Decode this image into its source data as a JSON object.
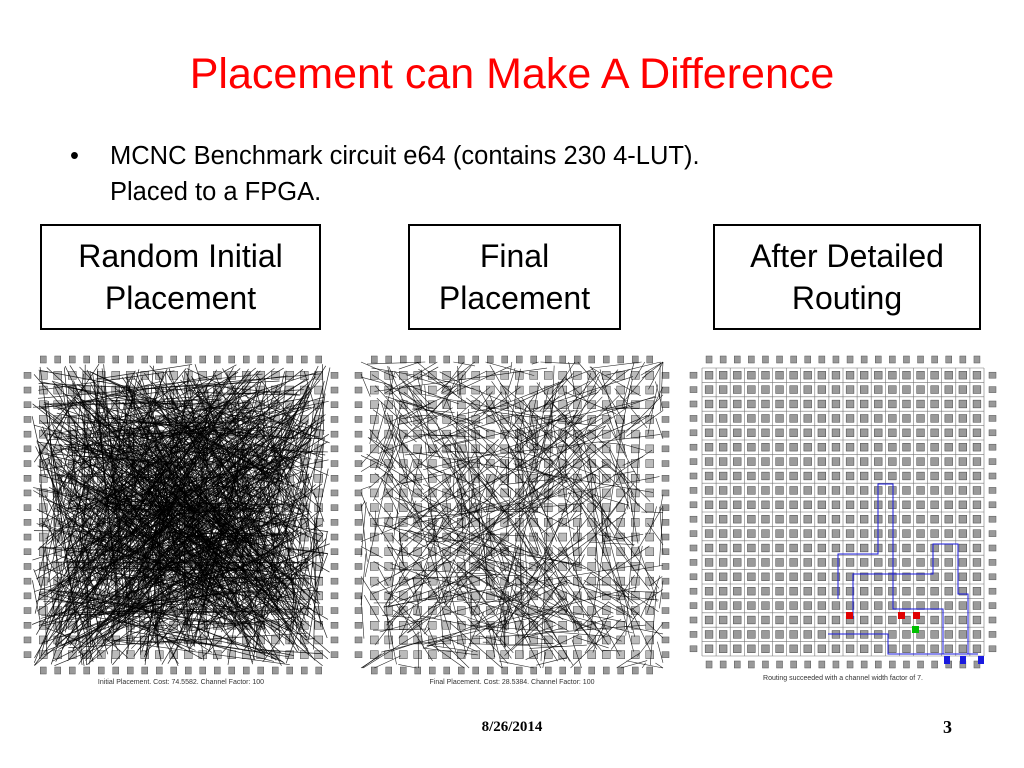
{
  "slide": {
    "title": "Placement can Make A Difference",
    "bullet_marker": "•",
    "bullet_line1": "MCNC Benchmark circuit e64 (contains 230 4-LUT).",
    "bullet_line2": "Placed to a FPGA."
  },
  "labels": {
    "random_line1": "Random Initial",
    "random_line2": "Placement",
    "final_line1": "Final",
    "final_line2": "Placement",
    "routing_line1": "After Detailed",
    "routing_line2": "Routing"
  },
  "captions": {
    "initial": "Initial Placement.  Cost: 74.5582.  Channel Factor: 100",
    "final": "Final Placement.  Cost: 28.5384.  Channel Factor: 100",
    "routing": "Routing succeeded with a channel width factor of 7."
  },
  "footer": {
    "date": "8/26/2014",
    "page": "3"
  },
  "colors": {
    "title": "#ff0000",
    "route_blue": "#1a1adf",
    "pin_red": "#e00000",
    "pin_green": "#00c000"
  }
}
